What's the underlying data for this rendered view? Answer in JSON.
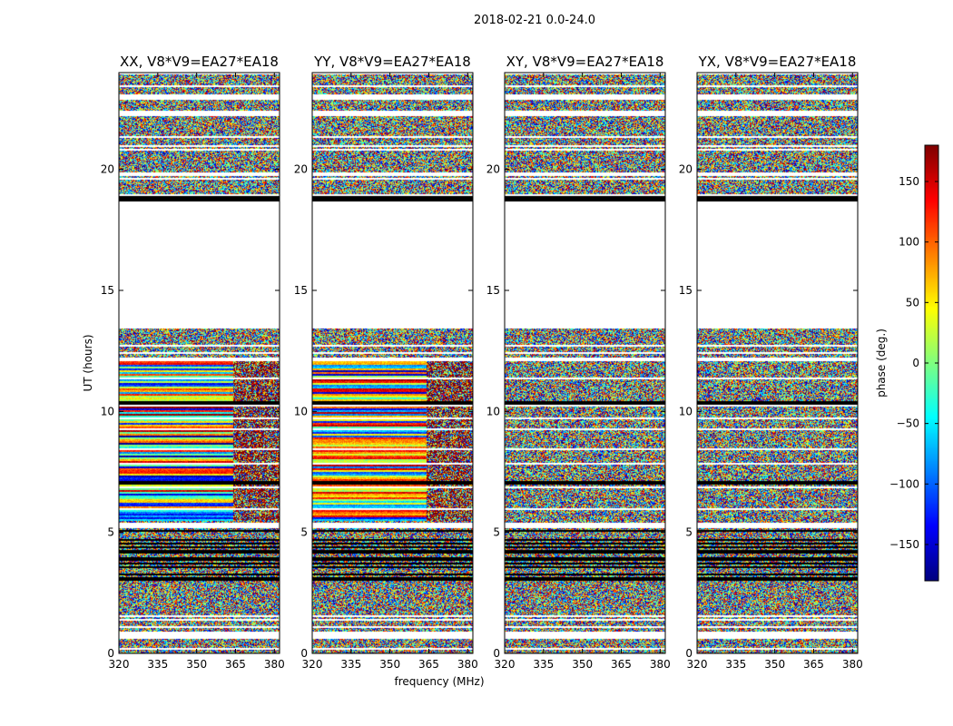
{
  "chart_data": {
    "type": "heatmap",
    "suptitle": "2018-02-21 0.0-24.0",
    "xlabel": "frequency (MHz)",
    "ylabel": "UT (hours)",
    "xlim": [
      320,
      382
    ],
    "ylim": [
      0,
      24
    ],
    "xticks": [
      320,
      335,
      350,
      365,
      380
    ],
    "yticks": [
      0,
      5,
      10,
      15,
      20
    ],
    "panels": [
      {
        "title": "XX, V8*V9=EA27*EA18",
        "pol": "XX"
      },
      {
        "title": "YY, V8*V9=EA27*EA18",
        "pol": "YY"
      },
      {
        "title": "XY, V8*V9=EA27*EA18",
        "pol": "XY"
      },
      {
        "title": "YX, V8*V9=EA27*EA18",
        "pol": "YX"
      }
    ],
    "colorbar": {
      "label": "phase (deg.)",
      "colormap": "jet",
      "range": [
        -180,
        180
      ],
      "ticks": [
        -150,
        -100,
        -50,
        0,
        50,
        100,
        150
      ],
      "tick_labels": [
        "−150",
        "−100",
        "−50",
        "0",
        "50",
        "100",
        "150"
      ]
    },
    "blank_ut_ranges": [
      [
        18.8,
        19.0
      ],
      [
        13.4,
        18.7
      ],
      [
        5.2,
        5.4
      ],
      [
        0.6,
        0.8
      ],
      [
        1.5,
        1.6
      ],
      [
        22.9,
        23.1
      ],
      [
        23.4,
        23.5
      ],
      [
        22.2,
        22.4
      ],
      [
        21.3,
        21.4
      ],
      [
        20.9,
        21.0
      ],
      [
        19.7,
        19.9
      ]
    ],
    "black_ut_lines": [
      18.75,
      18.85,
      10.35,
      7.05,
      5.05,
      3.25,
      3.1
    ],
    "coherent_feature_ut_range": [
      5.5,
      12.2
    ],
    "coherent_feature_freq_split": 364
  }
}
